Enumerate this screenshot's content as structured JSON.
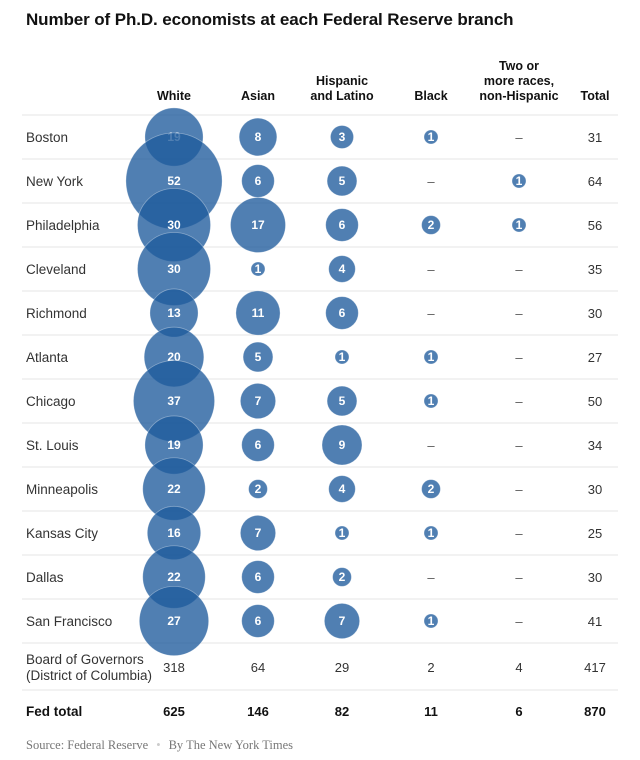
{
  "chart_data": {
    "type": "table",
    "title": "Number of Ph.D. economists at each Federal Reserve branch",
    "columns": [
      "White",
      "Asian",
      "Hispanic and Latino",
      "Black",
      "Two or more races, non-Hispanic",
      "Total"
    ],
    "column_headers": [
      [
        "White"
      ],
      [
        "Asian"
      ],
      [
        "Hispanic",
        "and Latino"
      ],
      [
        "Black"
      ],
      [
        "Two or",
        "more races,",
        "non-Hispanic"
      ],
      [
        "Total"
      ]
    ],
    "rows": [
      {
        "branch": "Boston",
        "values": [
          19,
          8,
          3,
          1,
          null,
          31
        ]
      },
      {
        "branch": "New York",
        "values": [
          52,
          6,
          5,
          null,
          1,
          64
        ]
      },
      {
        "branch": "Philadelphia",
        "values": [
          30,
          17,
          6,
          2,
          1,
          56
        ]
      },
      {
        "branch": "Cleveland",
        "values": [
          30,
          1,
          4,
          null,
          null,
          35
        ]
      },
      {
        "branch": "Richmond",
        "values": [
          13,
          11,
          6,
          null,
          null,
          30
        ]
      },
      {
        "branch": "Atlanta",
        "values": [
          20,
          5,
          1,
          1,
          null,
          27
        ]
      },
      {
        "branch": "Chicago",
        "values": [
          37,
          7,
          5,
          1,
          null,
          50
        ]
      },
      {
        "branch": "St. Louis",
        "values": [
          19,
          6,
          9,
          null,
          null,
          34
        ]
      },
      {
        "branch": "Minneapolis",
        "values": [
          22,
          2,
          4,
          2,
          null,
          30
        ]
      },
      {
        "branch": "Kansas City",
        "values": [
          16,
          7,
          1,
          1,
          null,
          25
        ]
      },
      {
        "branch": "Dallas",
        "values": [
          22,
          6,
          2,
          null,
          null,
          30
        ]
      },
      {
        "branch": "San Francisco",
        "values": [
          27,
          6,
          7,
          1,
          null,
          41
        ]
      }
    ],
    "board_row": {
      "branch": [
        "Board of Governors",
        "(District of Columbia)"
      ],
      "values": [
        318,
        64,
        29,
        2,
        4,
        417
      ]
    },
    "total_row": {
      "branch": "Fed total",
      "values": [
        625,
        146,
        82,
        11,
        6,
        870
      ]
    },
    "missing_symbol": "–",
    "bubble_color": "#1f5b9c"
  },
  "footer": {
    "source": "Source: Federal Reserve",
    "separator": "•",
    "credit": "By The New York Times"
  }
}
